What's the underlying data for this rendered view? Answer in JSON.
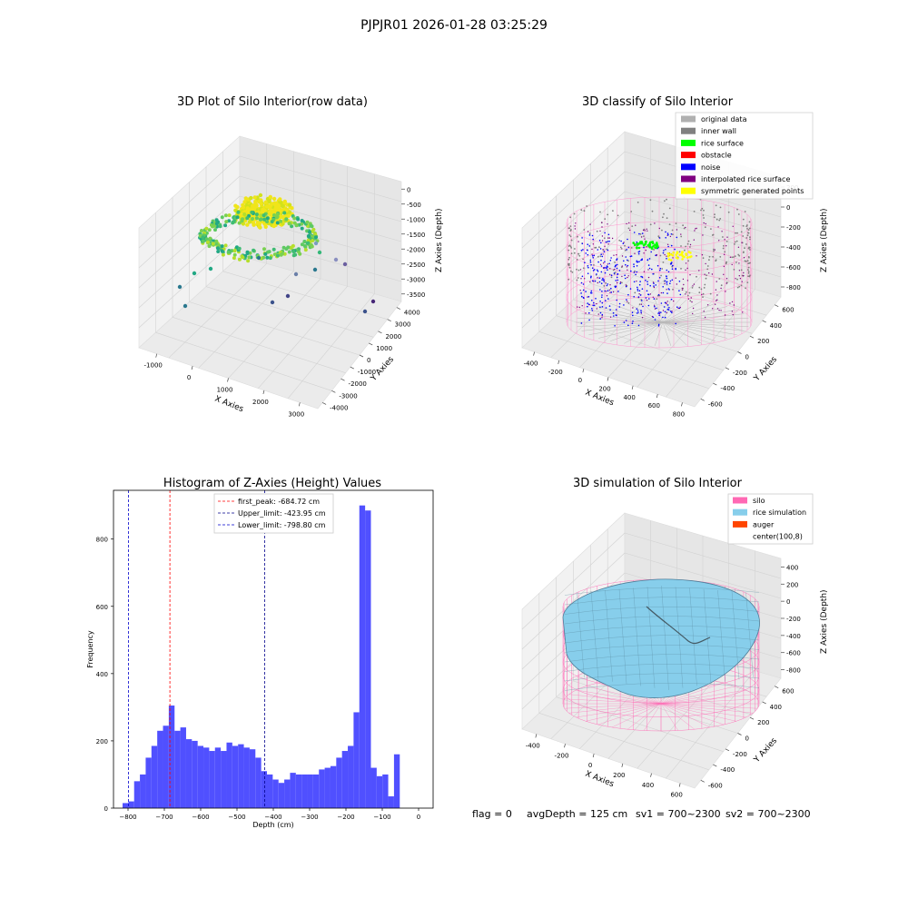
{
  "suptitle": "PJPJR01 2026-01-28 03:25:29",
  "footer": {
    "flag": "flag = 0",
    "avg_depth": "avgDepth = 125 cm",
    "sv1": "sv1 = 700~2300",
    "sv2": "sv2 = 700~2300"
  },
  "chart_data": [
    {
      "type": "scatter",
      "title": "3D Plot of Silo Interior(row data)",
      "xlabel": "X Axies",
      "ylabel": "Y Axies",
      "zlabel": "Z Axies (Depth)",
      "x_ticks": [
        "-1000",
        "0",
        "1000",
        "2000",
        "3000"
      ],
      "y_ticks": [
        "-4000",
        "-3000",
        "-2000",
        "-1000",
        "0",
        "1000",
        "2000",
        "3000",
        "4000"
      ],
      "z_ticks": [
        "-3500",
        "-3000",
        "-2500",
        "-2000",
        "-1500",
        "-1000",
        "-500",
        "0"
      ]
    },
    {
      "type": "scatter",
      "title": "3D classify of Silo Interior",
      "xlabel": "X Axies",
      "ylabel": "Y Axies",
      "zlabel": "Z Axies (Depth)",
      "x_ticks": [
        "-400",
        "-200",
        "0",
        "200",
        "400",
        "600",
        "800"
      ],
      "y_ticks": [
        "-600",
        "-400",
        "-200",
        "0",
        "200",
        "400",
        "600"
      ],
      "z_ticks": [
        "-800",
        "-600",
        "-400",
        "-200",
        "0",
        "200"
      ],
      "legend": [
        {
          "name": "original data",
          "color": "#b0b0b0"
        },
        {
          "name": "inner wall",
          "color": "#808080"
        },
        {
          "name": "rice surface",
          "color": "#00ff00"
        },
        {
          "name": "obstacle",
          "color": "#ff0000"
        },
        {
          "name": "noise",
          "color": "#0000ff"
        },
        {
          "name": "interpolated rice surface",
          "color": "#800080"
        },
        {
          "name": "symmetric generated points",
          "color": "#ffff00"
        }
      ]
    },
    {
      "type": "bar",
      "title": "Histogram of Z-Axies (Height) Values",
      "xlabel": "Depth (cm)",
      "ylabel": "Frequency",
      "xlim": [
        -840,
        40
      ],
      "ylim": [
        0,
        945
      ],
      "x_ticks": [
        "-800",
        "-700",
        "-600",
        "-500",
        "-400",
        "-300",
        "-200",
        "-100",
        "0"
      ],
      "y_ticks": [
        "0",
        "200",
        "400",
        "600",
        "800"
      ],
      "bin_start": -815,
      "bin_width": 15.9,
      "values": [
        15,
        20,
        80,
        100,
        150,
        185,
        230,
        245,
        305,
        230,
        240,
        205,
        200,
        185,
        180,
        170,
        180,
        170,
        195,
        185,
        190,
        180,
        175,
        150,
        110,
        100,
        85,
        75,
        85,
        105,
        100,
        100,
        100,
        100,
        115,
        120,
        125,
        150,
        170,
        185,
        285,
        900,
        885,
        120,
        95,
        100,
        35,
        160
      ],
      "bar_color": "#5050ff",
      "vlines": [
        {
          "label": "first_peak: -684.72 cm",
          "x": -684.72,
          "color": "#ff0000"
        },
        {
          "label": "Upper_limit: -423.95 cm",
          "x": -423.95,
          "color": "#00008b"
        },
        {
          "label": "Lower_limit: -798.80 cm",
          "x": -798.8,
          "color": "#0000cd"
        }
      ]
    },
    {
      "type": "area",
      "title": "3D simulation of Silo Interior",
      "xlabel": "X Axies",
      "ylabel": "Y Axies",
      "zlabel": "Z Axies (Depth)",
      "x_ticks": [
        "-400",
        "-200",
        "0",
        "200",
        "400",
        "600"
      ],
      "y_ticks": [
        "-600",
        "-400",
        "-200",
        "0",
        "200",
        "400",
        "600"
      ],
      "z_ticks": [
        "-800",
        "-600",
        "-400",
        "-200",
        "0",
        "200",
        "400"
      ],
      "legend": [
        {
          "name": "silo",
          "color": "#ff69b4"
        },
        {
          "name": "rice simulation",
          "color": "#87ceeb"
        },
        {
          "name": "auger",
          "color": "#ff4500"
        },
        {
          "name": "center(100,8)",
          "color": "#ffffff"
        }
      ]
    }
  ]
}
